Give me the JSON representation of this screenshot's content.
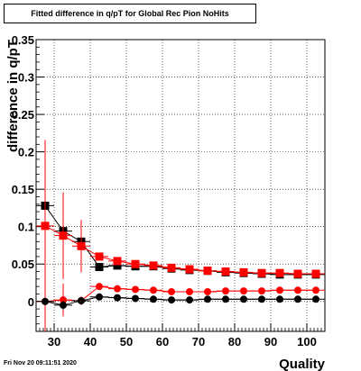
{
  "header": {
    "title": "Fitted difference in q/pT for Global Rec Pion NoHits"
  },
  "footer": {
    "timestamp": "Fri Nov 20 09:11:51 2020"
  },
  "colors": {
    "black": "#000000",
    "red": "#ff0000",
    "dark_red": "#ee1111",
    "grid": "#000000"
  },
  "chart_data": {
    "type": "scatter",
    "title": "Fitted difference in q/pT for Global Rec Pion NoHits",
    "xlabel": "Quality",
    "ylabel": "difference in q/pT",
    "xlim": [
      25,
      105
    ],
    "ylim": [
      -0.04,
      0.35
    ],
    "grid": true,
    "x_ticks": [
      30,
      40,
      50,
      60,
      70,
      80,
      90,
      100
    ],
    "y_ticks": [
      0,
      0.05,
      0.1,
      0.15,
      0.2,
      0.25,
      0.3,
      0.35
    ],
    "x_tick_labels": [
      "30",
      "40",
      "50",
      "60",
      "70",
      "80",
      "90",
      "100"
    ],
    "y_tick_labels": [
      "0",
      "0.05",
      "0.1",
      "0.15",
      "0.2",
      "0.25",
      "0.3",
      "0.35"
    ],
    "series": [
      {
        "marker": "square",
        "color": "#000000",
        "x": [
          27.5,
          32.5,
          37.5,
          42.5,
          47.5,
          52.5,
          57.5,
          62.5,
          67.5,
          72.5,
          77.5,
          82.5,
          87.5,
          92.5,
          97.5,
          102.5
        ],
        "y": [
          0.128,
          0.094,
          0.08,
          0.046,
          0.048,
          0.047,
          0.047,
          0.044,
          0.042,
          0.041,
          0.039,
          0.038,
          0.037,
          0.036,
          0.036,
          0.036
        ],
        "yerr": [
          0.008,
          0.008,
          0.01,
          0.004,
          0.003,
          0.002,
          0.002,
          0.002,
          0.002,
          0.002,
          0.002,
          0.002,
          0.002,
          0.002,
          0.002,
          0.002
        ]
      },
      {
        "marker": "square",
        "color": "#ff0000",
        "x": [
          27.5,
          32.5,
          37.5,
          42.5,
          47.5,
          52.5,
          57.5,
          62.5,
          67.5,
          72.5,
          77.5,
          82.5,
          87.5,
          92.5,
          97.5,
          102.5
        ],
        "y": [
          0.101,
          0.088,
          0.074,
          0.06,
          0.054,
          0.05,
          0.048,
          0.045,
          0.043,
          0.041,
          0.04,
          0.039,
          0.038,
          0.038,
          0.037,
          0.037
        ],
        "yerr": [
          0.115,
          0.058,
          0.035,
          0.005,
          0.003,
          0.002,
          0.002,
          0.002,
          0.002,
          0.002,
          0.002,
          0.002,
          0.002,
          0.002,
          0.002,
          0.002
        ]
      },
      {
        "marker": "circle",
        "color": "#ff0000",
        "x": [
          27.5,
          32.5,
          37.5,
          42.5,
          47.5,
          52.5,
          57.5,
          62.5,
          67.5,
          72.5,
          77.5,
          82.5,
          87.5,
          92.5,
          97.5,
          102.5
        ],
        "y": [
          0.0,
          0.002,
          0.001,
          0.02,
          0.017,
          0.016,
          0.015,
          0.013,
          0.013,
          0.013,
          0.014,
          0.014,
          0.014,
          0.015,
          0.015,
          0.015
        ],
        "yerr": [
          0.04,
          0.022,
          0.006,
          0.003,
          0.002,
          0.002,
          0.002,
          0.002,
          0.002,
          0.002,
          0.002,
          0.002,
          0.002,
          0.002,
          0.002,
          0.002
        ]
      },
      {
        "marker": "circle",
        "color": "#000000",
        "x": [
          27.5,
          32.5,
          37.5,
          42.5,
          47.5,
          52.5,
          57.5,
          62.5,
          67.5,
          72.5,
          77.5,
          82.5,
          87.5,
          92.5,
          97.5,
          102.5
        ],
        "y": [
          0.0,
          -0.005,
          0.001,
          0.006,
          0.005,
          0.004,
          0.003,
          0.002,
          0.002,
          0.003,
          0.003,
          0.003,
          0.003,
          0.003,
          0.003,
          0.003
        ],
        "yerr": [
          0.005,
          0.006,
          0.004,
          0.003,
          0.002,
          0.002,
          0.002,
          0.002,
          0.002,
          0.002,
          0.002,
          0.002,
          0.002,
          0.002,
          0.002,
          0.002
        ]
      }
    ]
  }
}
